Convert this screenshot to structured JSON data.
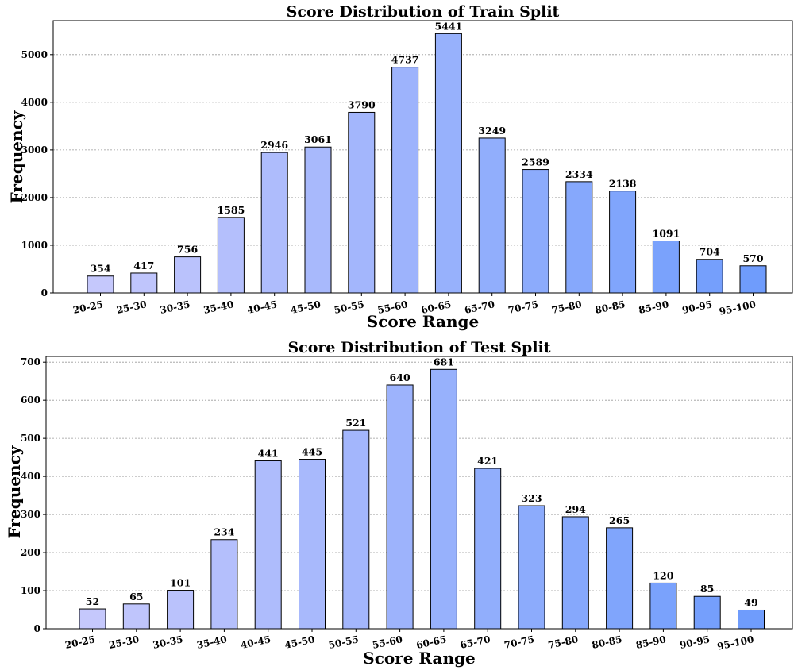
{
  "chart_data": [
    {
      "type": "bar",
      "title": "Score Distribution of Train Split",
      "xlabel": "Score Range",
      "ylabel": "Frequency",
      "categories": [
        "20-25",
        "25-30",
        "30-35",
        "35-40",
        "40-45",
        "45-50",
        "50-55",
        "55-60",
        "60-65",
        "65-70",
        "70-75",
        "75-80",
        "80-85",
        "85-90",
        "90-95",
        "95-100"
      ],
      "values": [
        354,
        417,
        756,
        1585,
        2946,
        3061,
        3790,
        4737,
        5441,
        3249,
        2589,
        2334,
        2138,
        1091,
        704,
        570
      ],
      "yticks": [
        0,
        1000,
        2000,
        3000,
        4000,
        5000
      ],
      "ylim": [
        0,
        5713
      ],
      "grid": true,
      "bar_color_start": "#c5c8fc",
      "bar_color_end": "#6f9cfc"
    },
    {
      "type": "bar",
      "title": "Score Distribution of Test Split",
      "xlabel": "Score Range",
      "ylabel": "Frequency",
      "categories": [
        "20-25",
        "25-30",
        "30-35",
        "35-40",
        "40-45",
        "45-50",
        "50-55",
        "55-60",
        "60-65",
        "65-70",
        "70-75",
        "75-80",
        "80-85",
        "85-90",
        "90-95",
        "95-100"
      ],
      "values": [
        52,
        65,
        101,
        234,
        441,
        445,
        521,
        640,
        681,
        421,
        323,
        294,
        265,
        120,
        85,
        49
      ],
      "yticks": [
        0,
        100,
        200,
        300,
        400,
        500,
        600,
        700
      ],
      "ylim": [
        0,
        715
      ],
      "grid": true,
      "bar_color_start": "#c5c8fc",
      "bar_color_end": "#6f9cfc"
    }
  ]
}
